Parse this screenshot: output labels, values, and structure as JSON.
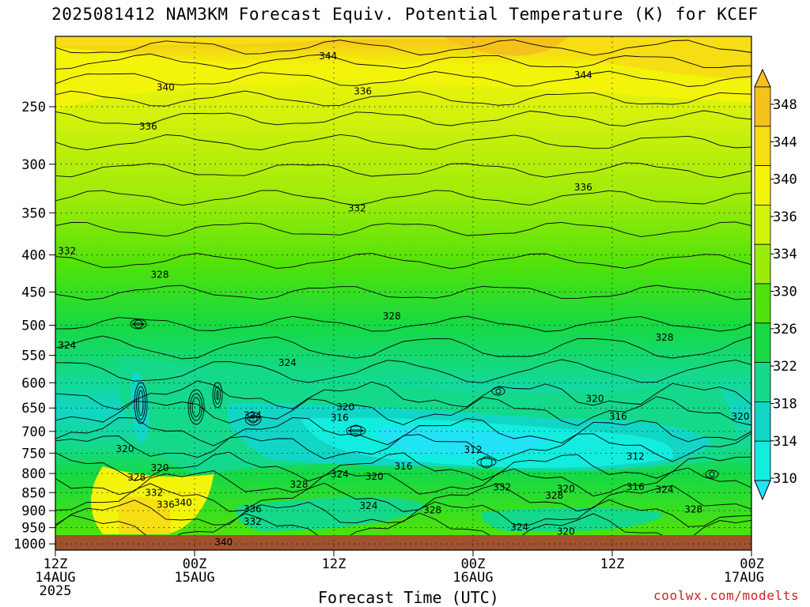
{
  "title": "2025081412 NAM3KM Forecast Equiv. Potential Temperature (K) for KCEF",
  "credit": "coolwx.com/modelts",
  "chart_data": {
    "type": "heatmap",
    "title": "2025081412 NAM3KM Forecast Equiv. Potential Temperature (K) for KCEF",
    "xlabel": "Forecast Time (UTC)",
    "ylabel": "",
    "x_ticks": [
      {
        "hour": 0,
        "lines": [
          "12Z",
          "14AUG",
          "2025"
        ]
      },
      {
        "hour": 12,
        "lines": [
          "00Z",
          "15AUG"
        ]
      },
      {
        "hour": 24,
        "lines": [
          "12Z"
        ]
      },
      {
        "hour": 36,
        "lines": [
          "00Z",
          "16AUG"
        ]
      },
      {
        "hour": 48,
        "lines": [
          "12Z"
        ]
      },
      {
        "hour": 60,
        "lines": [
          "00Z",
          "17AUG"
        ]
      }
    ],
    "xlim_hours": [
      0,
      60
    ],
    "y_ticks": [
      250,
      300,
      350,
      400,
      450,
      500,
      550,
      600,
      650,
      700,
      750,
      800,
      850,
      900,
      950,
      1000
    ],
    "ylim": [
      200,
      1020
    ],
    "y_scale": "log-pressure (inverted)",
    "grid": true,
    "colorbar": {
      "labels": [
        348,
        344,
        340,
        336,
        334,
        330,
        326,
        322,
        318,
        314,
        310
      ],
      "colors": [
        "#f5c21c",
        "#f7dd14",
        "#f4f40a",
        "#d2f20c",
        "#9ceb0a",
        "#50e20a",
        "#16d943",
        "#14d98b",
        "#12d6c5",
        "#12eddf",
        "#22e2f6"
      ],
      "extend": "both",
      "placement": "right"
    },
    "contour_labels": [
      {
        "hour": 23.5,
        "p": 213,
        "value": 344
      },
      {
        "hour": 45.5,
        "p": 226,
        "value": 344
      },
      {
        "hour": 9.5,
        "p": 235,
        "value": 340
      },
      {
        "hour": 26.5,
        "p": 238,
        "value": 336
      },
      {
        "hour": 8.0,
        "p": 266,
        "value": 336
      },
      {
        "hour": 45.5,
        "p": 323,
        "value": 336
      },
      {
        "hour": 26.0,
        "p": 345,
        "value": 332
      },
      {
        "hour": 1.0,
        "p": 395,
        "value": 332
      },
      {
        "hour": 9.0,
        "p": 426,
        "value": 328
      },
      {
        "hour": 29.0,
        "p": 486,
        "value": 328
      },
      {
        "hour": 52.5,
        "p": 520,
        "value": 328
      },
      {
        "hour": 1.0,
        "p": 533,
        "value": 324
      },
      {
        "hour": 20.0,
        "p": 563,
        "value": 324
      },
      {
        "hour": 46.5,
        "p": 631,
        "value": 320
      },
      {
        "hour": 25.0,
        "p": 648,
        "value": 320
      },
      {
        "hour": 24.5,
        "p": 670,
        "value": 316
      },
      {
        "hour": 48.5,
        "p": 668,
        "value": 316
      },
      {
        "hour": 17.0,
        "p": 665,
        "value": 324
      },
      {
        "hour": 62.0,
        "p": 668,
        "value": 320
      },
      {
        "hour": 36.0,
        "p": 742,
        "value": 312
      },
      {
        "hour": 50.0,
        "p": 758,
        "value": 312
      },
      {
        "hour": 6.0,
        "p": 740,
        "value": 320
      },
      {
        "hour": 9.0,
        "p": 786,
        "value": 320
      },
      {
        "hour": 30.0,
        "p": 782,
        "value": 316
      },
      {
        "hour": 24.5,
        "p": 802,
        "value": 324
      },
      {
        "hour": 27.5,
        "p": 808,
        "value": 320
      },
      {
        "hour": 50.0,
        "p": 835,
        "value": 316
      },
      {
        "hour": 52.5,
        "p": 842,
        "value": 324
      },
      {
        "hour": 7.0,
        "p": 810,
        "value": 328
      },
      {
        "hour": 21.0,
        "p": 828,
        "value": 328
      },
      {
        "hour": 38.5,
        "p": 836,
        "value": 332
      },
      {
        "hour": 44.0,
        "p": 840,
        "value": 320
      },
      {
        "hour": 43.0,
        "p": 858,
        "value": 328
      },
      {
        "hour": 8.5,
        "p": 850,
        "value": 332
      },
      {
        "hour": 9.5,
        "p": 883,
        "value": 336
      },
      {
        "hour": 11.0,
        "p": 878,
        "value": 340
      },
      {
        "hour": 17.0,
        "p": 895,
        "value": 336
      },
      {
        "hour": 27.0,
        "p": 886,
        "value": 324
      },
      {
        "hour": 32.5,
        "p": 899,
        "value": 328
      },
      {
        "hour": 55.0,
        "p": 896,
        "value": 328
      },
      {
        "hour": 17.0,
        "p": 932,
        "value": 332
      },
      {
        "hour": 40.0,
        "p": 948,
        "value": 324
      },
      {
        "hour": 44.0,
        "p": 962,
        "value": 320
      },
      {
        "hour": 14.5,
        "p": 995,
        "value": 340
      }
    ]
  }
}
